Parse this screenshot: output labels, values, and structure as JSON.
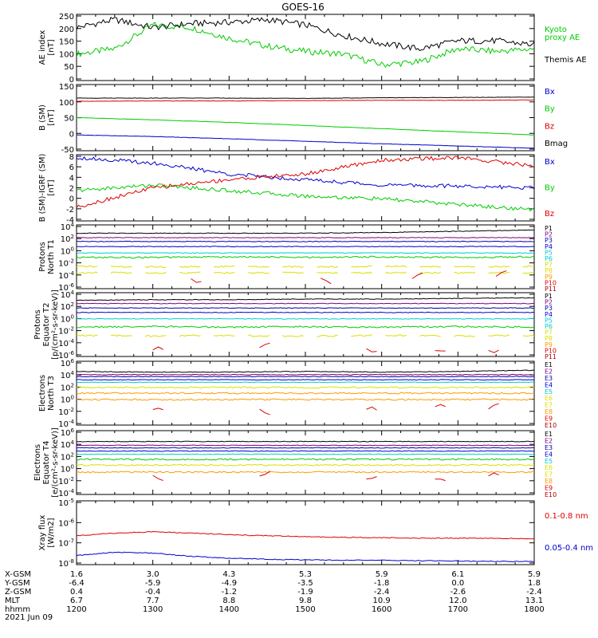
{
  "title": "GOES-16",
  "colors": {
    "black": "#000000",
    "green": "#00cc00",
    "red": "#dd0000",
    "blue": "#0000cc",
    "purple": "#800080",
    "dblue": "#0000aa",
    "cyan": "#00cccc",
    "yellow": "#dddd00",
    "orange": "#ff9900",
    "dred": "#aa0000"
  },
  "x_ticks": [
    "1200",
    "1300",
    "1400",
    "1500",
    "1600",
    "1700",
    "1800"
  ],
  "ephemeris": {
    "labels": [
      "X-GSM",
      "Y-GSM",
      "Z-GSM",
      "MLT",
      "hhmm"
    ],
    "date": "2021 Jun 09",
    "rows": [
      [
        "1.6",
        "3.0",
        "4.3",
        "5.3",
        "5.9",
        "6.1",
        "5.9"
      ],
      [
        "-6.4",
        "-5.9",
        "-4.9",
        "-3.5",
        "-1.8",
        "0.0",
        "1.8"
      ],
      [
        "0.4",
        "-0.4",
        "-1.2",
        "-1.9",
        "-2.4",
        "-2.6",
        "-2.4"
      ],
      [
        "6.7",
        "7.7",
        "8.8",
        "9.8",
        "10.9",
        "12.0",
        "13.1"
      ]
    ]
  },
  "panels": [
    {
      "ylabel": [
        "AE index",
        "[nT]"
      ],
      "ticks": [
        "250",
        "200",
        "150",
        "100",
        "50",
        "0"
      ],
      "legend": [
        {
          "text": "Kyoto",
          "color": "green"
        },
        {
          "text": "proxy AE",
          "color": "green"
        },
        {
          "text": "Themis AE",
          "color": "black"
        }
      ]
    },
    {
      "ylabel": [
        "B (SM)",
        "[nT]"
      ],
      "ticks": [
        "150",
        "100",
        "50",
        "0",
        "-50"
      ],
      "legend": [
        {
          "text": "Bx",
          "color": "blue"
        },
        {
          "text": "By",
          "color": "green"
        },
        {
          "text": "Bz",
          "color": "red"
        },
        {
          "text": "Bmag",
          "color": "black"
        }
      ]
    },
    {
      "ylabel": [
        "B (SM)-IGRF (SM)",
        "[nT]"
      ],
      "ticks": [
        "8",
        "6",
        "4",
        "2",
        "0",
        "-2",
        "-4"
      ],
      "legend": [
        {
          "text": "Bx",
          "color": "blue"
        },
        {
          "text": "By",
          "color": "green"
        },
        {
          "text": "Bz",
          "color": "red"
        }
      ]
    },
    {
      "ylabel": [
        "Protons",
        "North T1"
      ],
      "ticks": [
        "10^4",
        "10^2",
        "10^0",
        "10^-2",
        "10^-4",
        "10^-6"
      ],
      "legend": [
        {
          "text": "P1",
          "color": "black"
        },
        {
          "text": "P2",
          "color": "purple"
        },
        {
          "text": "P3",
          "color": "dblue"
        },
        {
          "text": "P4",
          "color": "blue"
        },
        {
          "text": "P5",
          "color": "cyan"
        },
        {
          "text": "P6",
          "color": "cyan"
        },
        {
          "text": "P7",
          "color": "yellow"
        },
        {
          "text": "P8",
          "color": "yellow"
        },
        {
          "text": "P9",
          "color": "orange"
        },
        {
          "text": "P10",
          "color": "red"
        },
        {
          "text": "P11",
          "color": "dred"
        }
      ]
    },
    {
      "ylabel": [
        "Protons",
        "Equator T2",
        "[p/(cm²-s-sr-keV)]"
      ],
      "ticks": [
        "10^4",
        "10^2",
        "10^0",
        "10^-2",
        "10^-4",
        "10^-6"
      ],
      "legend": [
        {
          "text": "P1",
          "color": "black"
        },
        {
          "text": "P2",
          "color": "purple"
        },
        {
          "text": "P3",
          "color": "dblue"
        },
        {
          "text": "P4",
          "color": "blue"
        },
        {
          "text": "P5",
          "color": "cyan"
        },
        {
          "text": "P6",
          "color": "cyan"
        },
        {
          "text": "P7",
          "color": "yellow"
        },
        {
          "text": "P8",
          "color": "yellow"
        },
        {
          "text": "P9",
          "color": "orange"
        },
        {
          "text": "P10",
          "color": "red"
        },
        {
          "text": "P11",
          "color": "dred"
        }
      ]
    },
    {
      "ylabel": [
        "Electrons",
        "North T3"
      ],
      "ticks": [
        "10^6",
        "10^4",
        "10^2",
        "10^0",
        "10^-2",
        "10^-4"
      ],
      "legend": [
        {
          "text": "E1",
          "color": "black"
        },
        {
          "text": "E2",
          "color": "purple"
        },
        {
          "text": "E3",
          "color": "dblue"
        },
        {
          "text": "E4",
          "color": "blue"
        },
        {
          "text": "E5",
          "color": "cyan"
        },
        {
          "text": "E6",
          "color": "yellow"
        },
        {
          "text": "E7",
          "color": "yellow"
        },
        {
          "text": "E8",
          "color": "orange"
        },
        {
          "text": "E9",
          "color": "red"
        },
        {
          "text": "E10",
          "color": "dred"
        }
      ]
    },
    {
      "ylabel": [
        "Electrons",
        "Equator T4",
        "[e/(cm²-s-sr-keV)]"
      ],
      "ticks": [
        "10^6",
        "10^4",
        "10^2",
        "10^0",
        "10^-2",
        "10^-4"
      ],
      "legend": [
        {
          "text": "E1",
          "color": "black"
        },
        {
          "text": "E2",
          "color": "purple"
        },
        {
          "text": "E3",
          "color": "dblue"
        },
        {
          "text": "E4",
          "color": "blue"
        },
        {
          "text": "E5",
          "color": "cyan"
        },
        {
          "text": "E6",
          "color": "yellow"
        },
        {
          "text": "E7",
          "color": "yellow"
        },
        {
          "text": "E8",
          "color": "orange"
        },
        {
          "text": "E9",
          "color": "red"
        },
        {
          "text": "E10",
          "color": "dred"
        }
      ]
    },
    {
      "ylabel": [
        "Xray flux",
        "[W/m2]"
      ],
      "ticks": [
        "10^-5",
        "10^-6",
        "10^-7",
        "10^-8"
      ],
      "legend": [
        {
          "text": "0.1-0.8 nm",
          "color": "red"
        },
        {
          "text": "0.05-0.4 nm",
          "color": "blue"
        }
      ]
    }
  ],
  "chart_data": [
    {
      "type": "line",
      "title": "GOES-16",
      "ylabel": "AE index [nT]",
      "ylim": [
        0,
        250
      ],
      "x": [
        12.0,
        12.5,
        13.0,
        13.5,
        14.0,
        14.5,
        15.0,
        15.5,
        16.0,
        16.5,
        17.0,
        17.5,
        18.0
      ],
      "series": [
        {
          "name": "Kyoto proxy AE",
          "values": [
            100,
            120,
            210,
            200,
            160,
            130,
            110,
            100,
            60,
            70,
            120,
            110,
            120
          ]
        },
        {
          "name": "Themis AE",
          "values": [
            200,
            230,
            200,
            215,
            220,
            230,
            210,
            170,
            140,
            120,
            150,
            150,
            135
          ]
        }
      ]
    },
    {
      "type": "line",
      "ylabel": "B (SM) [nT]",
      "ylim": [
        -60,
        150
      ],
      "x": [
        12,
        13,
        14,
        15,
        16,
        17,
        18
      ],
      "series": [
        {
          "name": "Bx",
          "values": [
            -10,
            -15,
            -22,
            -30,
            -38,
            -45,
            -52
          ]
        },
        {
          "name": "By",
          "values": [
            45,
            38,
            30,
            20,
            10,
            0,
            -10
          ]
        },
        {
          "name": "Bz",
          "values": [
            97,
            98,
            98,
            99,
            100,
            100,
            101
          ]
        },
        {
          "name": "Bmag",
          "values": [
            107,
            107,
            107,
            106,
            108,
            109,
            110
          ]
        }
      ]
    },
    {
      "type": "line",
      "ylabel": "B (SM)-IGRF (SM) [nT]",
      "ylim": [
        -4,
        8
      ],
      "x": [
        12,
        13,
        14,
        15,
        16,
        17,
        18
      ],
      "series": [
        {
          "name": "Bx",
          "values": [
            7.5,
            6.5,
            4.5,
            3.5,
            2.5,
            2.3,
            2.0
          ]
        },
        {
          "name": "By",
          "values": [
            1.5,
            2.5,
            1.5,
            0.5,
            0,
            -1.0,
            -2.0
          ]
        },
        {
          "name": "Bz",
          "values": [
            -1.5,
            2.0,
            3.5,
            4.5,
            7.0,
            7.5,
            6.0
          ]
        }
      ]
    },
    {
      "type": "line",
      "ylabel": "Protons North T1",
      "ylim": [
        -6,
        4
      ],
      "log_scale": true,
      "x": [
        12,
        13,
        14,
        15,
        16,
        17,
        18
      ],
      "series": [
        {
          "name": "P1",
          "values": [
            2.7,
            2.7,
            2.7,
            2.7,
            2.8,
            3.0,
            3.2
          ]
        },
        {
          "name": "P2",
          "values": [
            2.0,
            2.0,
            2.0,
            2.0,
            2.0,
            2.0,
            2.0
          ]
        },
        {
          "name": "P3",
          "values": [
            1.4,
            1.4,
            1.4,
            1.4,
            1.4,
            1.4,
            1.4
          ]
        },
        {
          "name": "P4",
          "values": [
            0.6,
            0.6,
            0.6,
            0.6,
            0.6,
            0.6,
            0.6
          ]
        },
        {
          "name": "P5",
          "values": [
            -0.4,
            -0.4,
            -0.4,
            -0.4,
            -0.4,
            -0.4,
            -0.4
          ]
        },
        {
          "name": "P6",
          "values": [
            -1.1,
            -1.1,
            -1.0,
            -1.1,
            -1.0,
            -1.1,
            -1.0
          ]
        },
        {
          "name": "P7",
          "values": [
            -2.5,
            -2.6,
            -2.5,
            -2.6,
            -2.5,
            -2.6,
            -2.5
          ]
        },
        {
          "name": "P8",
          "values": [
            -3.5,
            -3.5,
            -3.5,
            -3.5,
            -3.5,
            -3.5,
            -3.5
          ]
        }
      ]
    },
    {
      "type": "line",
      "ylabel": "Protons Equator T2 [p/(cm²-s-sr-keV)]",
      "ylim": [
        -6,
        4
      ],
      "log_scale": true,
      "x": [
        12,
        13,
        14,
        15,
        16,
        17,
        18
      ],
      "series": [
        {
          "name": "P1",
          "values": [
            2.8,
            2.9,
            2.9,
            3.0,
            3.0,
            3.1,
            3.2
          ]
        },
        {
          "name": "P2",
          "values": [
            2.3,
            2.3,
            2.3,
            2.3,
            2.3,
            2.3,
            2.3
          ]
        },
        {
          "name": "P3",
          "values": [
            1.6,
            1.6,
            1.6,
            1.6,
            1.6,
            1.6,
            1.6
          ]
        },
        {
          "name": "P4",
          "values": [
            0.9,
            0.9,
            0.9,
            0.9,
            0.9,
            0.9,
            0.9
          ]
        },
        {
          "name": "P5",
          "values": [
            -0.1,
            -0.1,
            -0.1,
            -0.1,
            -0.1,
            -0.1,
            -0.1
          ]
        },
        {
          "name": "P6",
          "values": [
            -1.4,
            -1.3,
            -1.4,
            -1.3,
            -1.4,
            -1.3,
            -1.4
          ]
        },
        {
          "name": "P7",
          "values": [
            -2.7,
            -2.8,
            -2.7,
            -2.8,
            -2.7,
            -2.8,
            -2.7
          ]
        }
      ]
    },
    {
      "type": "line",
      "ylabel": "Electrons North T3",
      "ylim": [
        -4,
        6
      ],
      "log_scale": true,
      "x": [
        12,
        13,
        14,
        15,
        16,
        17,
        18
      ],
      "series": [
        {
          "name": "E1",
          "values": [
            4.4,
            4.3,
            4.3,
            4.4,
            4.3,
            4.4,
            4.6
          ]
        },
        {
          "name": "E2",
          "values": [
            3.9,
            3.9,
            3.9,
            3.9,
            3.9,
            3.9,
            3.9
          ]
        },
        {
          "name": "E3",
          "values": [
            3.6,
            3.6,
            3.6,
            3.6,
            3.6,
            3.6,
            3.6
          ]
        },
        {
          "name": "E4",
          "values": [
            3.1,
            3.1,
            3.1,
            3.1,
            3.1,
            3.1,
            3.1
          ]
        },
        {
          "name": "E5",
          "values": [
            2.7,
            2.7,
            2.7,
            2.7,
            2.7,
            2.7,
            2.7
          ]
        },
        {
          "name": "E6",
          "values": [
            1.9,
            1.9,
            1.9,
            1.9,
            1.9,
            1.9,
            1.9
          ]
        },
        {
          "name": "E7",
          "values": [
            1.0,
            1.0,
            1.0,
            1.0,
            1.0,
            1.0,
            1.0
          ]
        },
        {
          "name": "E8",
          "values": [
            0,
            0,
            0,
            0,
            0,
            0,
            0
          ]
        }
      ]
    },
    {
      "type": "line",
      "ylabel": "Electrons Equator T4 [e/(cm²-s-sr-keV)]",
      "ylim": [
        -4,
        6
      ],
      "log_scale": true,
      "x": [
        12,
        13,
        14,
        15,
        16,
        17,
        18
      ],
      "series": [
        {
          "name": "E1",
          "values": [
            4.3,
            4.3,
            4.3,
            4.3,
            4.3,
            4.3,
            4.3
          ]
        },
        {
          "name": "E2",
          "values": [
            3.7,
            3.7,
            3.7,
            3.7,
            3.7,
            3.7,
            3.7
          ]
        },
        {
          "name": "E3",
          "values": [
            3.3,
            3.3,
            3.3,
            3.3,
            3.3,
            3.3,
            3.3
          ]
        },
        {
          "name": "E4",
          "values": [
            2.8,
            2.8,
            2.8,
            2.8,
            2.8,
            2.8,
            2.8
          ]
        },
        {
          "name": "E5",
          "values": [
            2.3,
            2.3,
            2.3,
            2.3,
            2.3,
            2.3,
            2.3
          ]
        },
        {
          "name": "E6",
          "values": [
            1.5,
            1.5,
            1.5,
            1.5,
            1.5,
            1.5,
            1.5
          ]
        },
        {
          "name": "E7",
          "values": [
            0.6,
            0.6,
            0.6,
            0.6,
            0.6,
            0.6,
            0.6
          ]
        },
        {
          "name": "E8",
          "values": [
            -0.5,
            -0.5,
            -0.5,
            -0.5,
            -0.5,
            -0.5,
            -0.5
          ]
        }
      ]
    },
    {
      "type": "line",
      "ylabel": "Xray flux [W/m2]",
      "ylim": [
        -8.2,
        -5
      ],
      "log_scale": true,
      "x": [
        12,
        12.5,
        13,
        13.5,
        14,
        14.5,
        15,
        15.5,
        16,
        16.5,
        17,
        17.5,
        18
      ],
      "series": [
        {
          "name": "0.1-0.8 nm",
          "values": [
            -6.75,
            -6.62,
            -6.55,
            -6.62,
            -6.7,
            -6.75,
            -6.8,
            -6.83,
            -6.85,
            -6.87,
            -6.88,
            -6.88,
            -6.9
          ]
        },
        {
          "name": "0.05-0.4 nm",
          "values": [
            -7.75,
            -7.58,
            -7.62,
            -7.78,
            -7.88,
            -7.93,
            -7.96,
            -7.98,
            -7.98,
            -8.0,
            -8.02,
            -8.04,
            -8.04
          ]
        }
      ]
    }
  ]
}
